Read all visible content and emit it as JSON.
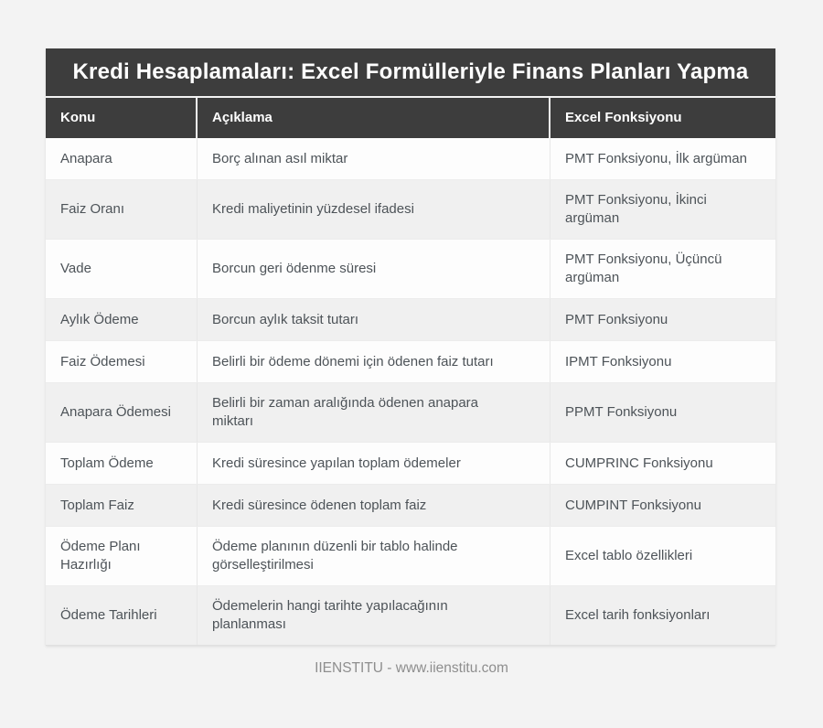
{
  "page": {
    "footer": "IIENSTITU - www.iienstitu.com"
  },
  "colors": {
    "page_background": "#f3f3f3",
    "header_bg": "#3d3d3d",
    "header_text": "#ffffff",
    "row_bg": "#fdfdfd",
    "row_alt_bg": "#f0f0f0",
    "cell_text": "#4d5358",
    "footer_text": "#8e8e8e"
  },
  "table": {
    "title": "Kredi Hesaplamaları: Excel Formülleriyle Finans Planları Yapma",
    "columns": [
      "Konu",
      "Açıklama",
      "Excel Fonksiyonu"
    ],
    "rows": [
      {
        "konu": "Anapara",
        "aciklama": "Borç alınan asıl miktar",
        "fonksiyon": "PMT Fonksiyonu, İlk argüman"
      },
      {
        "konu": "Faiz Oranı",
        "aciklama": "Kredi maliyetinin yüzdesel ifadesi",
        "fonksiyon": "PMT Fonksiyonu, İkinci argüman"
      },
      {
        "konu": "Vade",
        "aciklama": "Borcun geri ödenme süresi",
        "fonksiyon": "PMT Fonksiyonu, Üçüncü argüman"
      },
      {
        "konu": "Aylık Ödeme",
        "aciklama": "Borcun aylık taksit tutarı",
        "fonksiyon": "PMT Fonksiyonu"
      },
      {
        "konu": "Faiz Ödemesi",
        "aciklama": "Belirli bir ödeme dönemi için ödenen faiz tutarı",
        "fonksiyon": "IPMT Fonksiyonu"
      },
      {
        "konu": "Anapara Ödemesi",
        "aciklama": "Belirli bir zaman aralığında ödenen anapara miktarı",
        "fonksiyon": "PPMT Fonksiyonu"
      },
      {
        "konu": "Toplam Ödeme",
        "aciklama": "Kredi süresince yapılan toplam ödemeler",
        "fonksiyon": "CUMPRINC Fonksiyonu"
      },
      {
        "konu": "Toplam Faiz",
        "aciklama": "Kredi süresince ödenen toplam faiz",
        "fonksiyon": "CUMPINT Fonksiyonu"
      },
      {
        "konu": "Ödeme Planı Hazırlığı",
        "aciklama": "Ödeme planının düzenli bir tablo halinde görselleştirilmesi",
        "fonksiyon": "Excel tablo özellikleri"
      },
      {
        "konu": "Ödeme Tarihleri",
        "aciklama": "Ödemelerin hangi tarihte yapılacağının planlanması",
        "fonksiyon": "Excel tarih fonksiyonları"
      }
    ]
  }
}
